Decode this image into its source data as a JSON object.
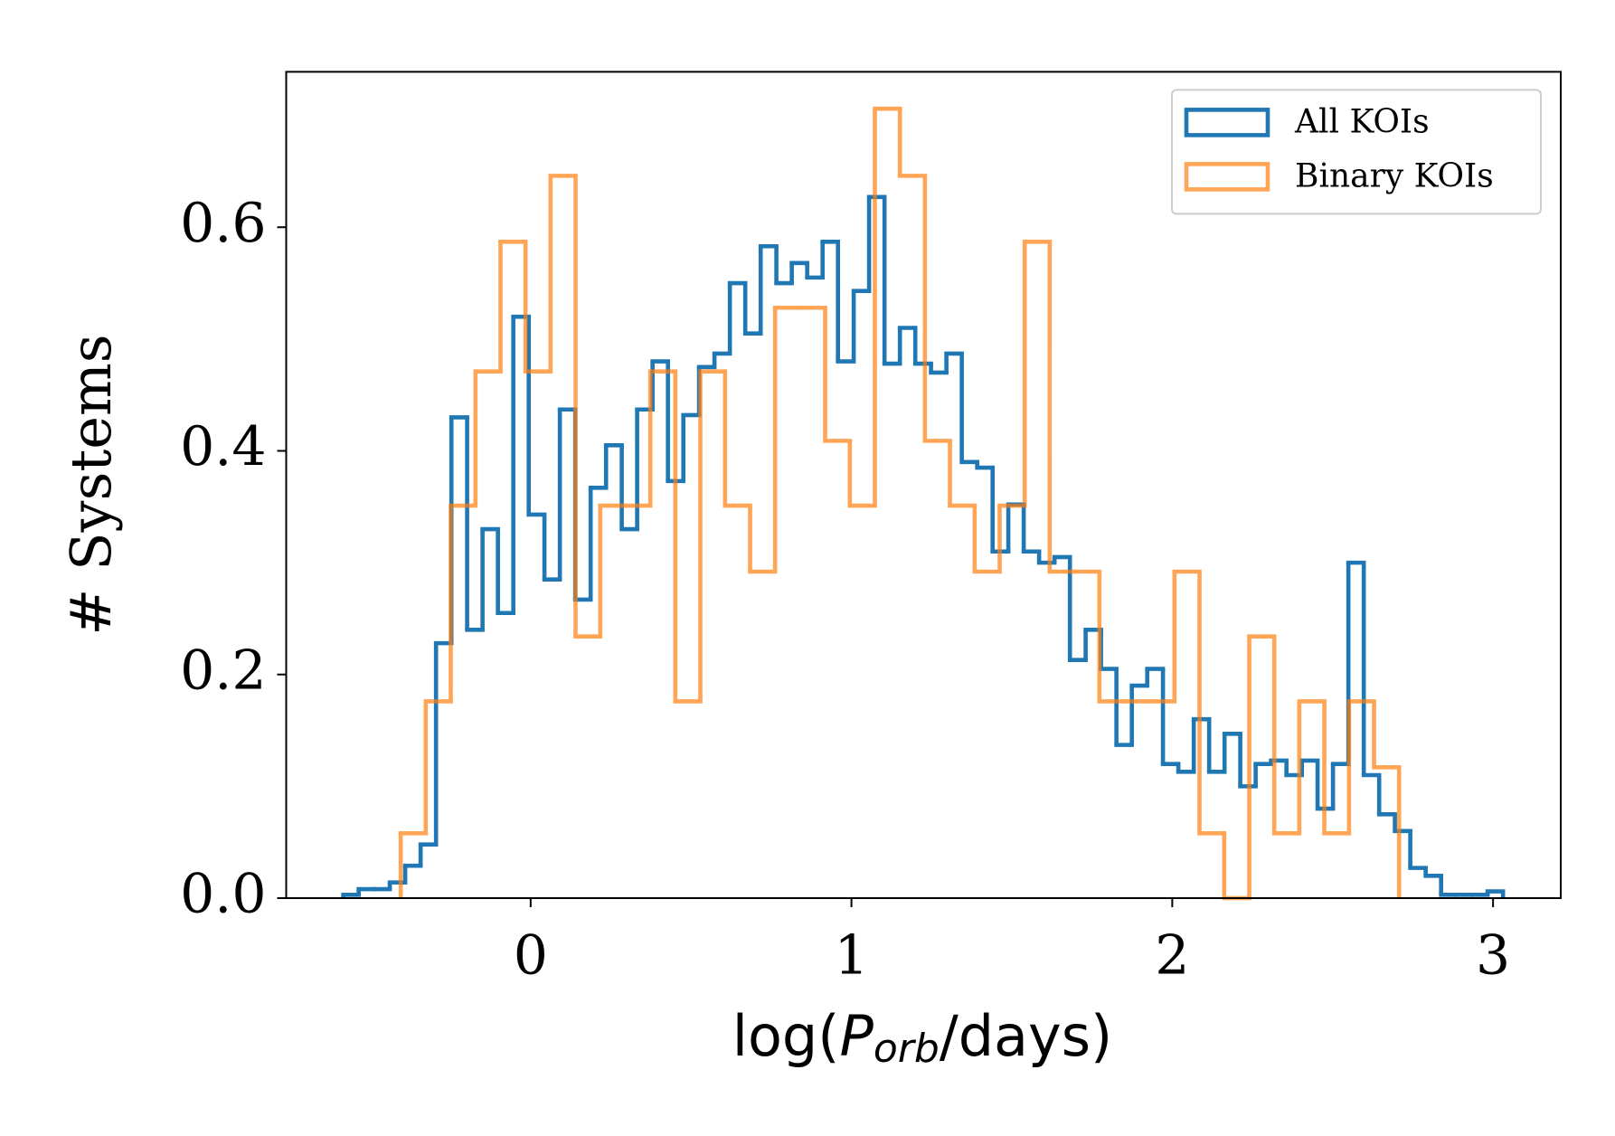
{
  "chart_data": {
    "type": "histogram",
    "xlabel": [
      "log(",
      "P",
      "orb",
      "/days)"
    ],
    "ylabel": "# Systems",
    "xlim": [
      -0.762,
      3.211
    ],
    "ylim": [
      0,
      0.739
    ],
    "xticks": [
      0,
      1,
      2,
      3
    ],
    "yticks": [
      {
        "value": 0,
        "label": "0.0"
      },
      0.2,
      0.4,
      0.6
    ],
    "grid": false,
    "legend": "upper right",
    "series": [
      {
        "name": "All KOIs",
        "color": "#1f77b4",
        "alpha": 1,
        "bins": [
          -0.584,
          -0.536,
          -0.488,
          -0.439,
          -0.391,
          -0.343,
          -0.295,
          -0.247,
          -0.198,
          -0.15,
          -0.102,
          -0.054,
          -0.006,
          0.043,
          0.091,
          0.139,
          0.187,
          0.235,
          0.284,
          0.332,
          0.38,
          0.428,
          0.476,
          0.525,
          0.573,
          0.621,
          0.669,
          0.717,
          0.766,
          0.814,
          0.862,
          0.91,
          0.958,
          1.007,
          1.055,
          1.103,
          1.151,
          1.199,
          1.248,
          1.296,
          1.344,
          1.392,
          1.44,
          1.489,
          1.537,
          1.585,
          1.633,
          1.681,
          1.73,
          1.778,
          1.826,
          1.874,
          1.922,
          1.971,
          2.019,
          2.067,
          2.115,
          2.163,
          2.212,
          2.26,
          2.308,
          2.356,
          2.404,
          2.453,
          2.501,
          2.549,
          2.597,
          2.645,
          2.694,
          2.742,
          2.79,
          2.838,
          2.886,
          2.935,
          2.983,
          3.031
        ],
        "values": [
          0.003,
          0.008,
          0.008,
          0.014,
          0.029,
          0.048,
          0.228,
          0.43,
          0.24,
          0.33,
          0.255,
          0.52,
          0.343,
          0.285,
          0.437,
          0.267,
          0.367,
          0.405,
          0.33,
          0.437,
          0.48,
          0.373,
          0.432,
          0.475,
          0.487,
          0.55,
          0.505,
          0.583,
          0.55,
          0.568,
          0.555,
          0.587,
          0.48,
          0.543,
          0.627,
          0.478,
          0.51,
          0.478,
          0.47,
          0.487,
          0.39,
          0.385,
          0.31,
          0.352,
          0.31,
          0.3,
          0.305,
          0.213,
          0.24,
          0.205,
          0.137,
          0.19,
          0.205,
          0.12,
          0.113,
          0.16,
          0.113,
          0.147,
          0.1,
          0.12,
          0.123,
          0.11,
          0.123,
          0.08,
          0.12,
          0.3,
          0.11,
          0.075,
          0.06,
          0.027,
          0.02,
          0.003,
          0.003,
          0.003,
          0.006
        ]
      },
      {
        "name": "Binary KOIs",
        "color": "#ff7f0e",
        "alpha": 0.7,
        "bins": [
          -0.405,
          -0.327,
          -0.249,
          -0.172,
          -0.094,
          -0.016,
          0.062,
          0.14,
          0.217,
          0.295,
          0.373,
          0.451,
          0.529,
          0.606,
          0.684,
          0.762,
          0.84,
          0.918,
          0.995,
          1.073,
          1.151,
          1.229,
          1.307,
          1.384,
          1.462,
          1.54,
          1.618,
          1.696,
          1.773,
          1.851,
          1.929,
          2.007,
          2.085,
          2.162,
          2.24,
          2.318,
          2.396,
          2.474,
          2.551,
          2.629,
          2.707
        ],
        "values": [
          0.058,
          0.176,
          0.351,
          0.471,
          0.587,
          0.471,
          0.646,
          0.234,
          0.351,
          0.351,
          0.471,
          0.176,
          0.471,
          0.351,
          0.292,
          0.528,
          0.528,
          0.409,
          0.351,
          0.706,
          0.646,
          0.409,
          0.351,
          0.292,
          0.351,
          0.587,
          0.292,
          0.292,
          0.176,
          0.176,
          0.176,
          0.292,
          0.058,
          0,
          0.234,
          0.058,
          0.176,
          0.058,
          0.176,
          0.117
        ]
      }
    ]
  }
}
